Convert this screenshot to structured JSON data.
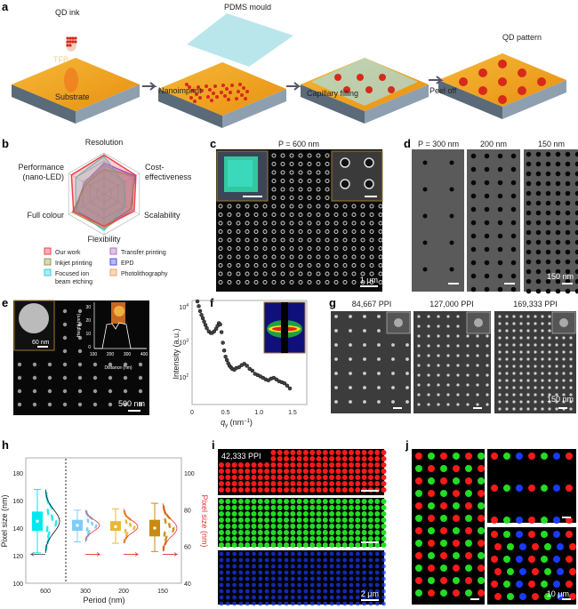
{
  "panels": {
    "a": "a",
    "b": "b",
    "c": "c",
    "d": "d",
    "e": "e",
    "f": "f",
    "g": "g",
    "h": "h",
    "i": "i",
    "j": "j"
  },
  "a": {
    "labels": {
      "qd_ink": "QD ink",
      "tfb": "TFB",
      "substrate": "Substrate",
      "pdms": "PDMS mould",
      "qd_pattern": "QD pattern"
    },
    "steps": [
      "Nanoimprint",
      "Capillary filling",
      "Peel off"
    ],
    "colors": {
      "slab": "#f2a81e",
      "qd": "#d62a1a",
      "mould": "#a8e0e6"
    }
  },
  "b": {
    "axes": [
      "Resolution",
      "Cost-",
      "effectiveness",
      "Scalability",
      "Flexibility",
      "Full colour",
      "Performance",
      "(nano-LED)"
    ],
    "legend": [
      {
        "label": "Our work",
        "color": "#f0404a"
      },
      {
        "label": "Transfer printing",
        "color": "#b070c0"
      },
      {
        "label": "Inkjet printing",
        "color": "#9a9a50"
      },
      {
        "label": "EPD",
        "color": "#5050e0"
      },
      {
        "label": "Focused ion",
        "label2": "beam etching",
        "color": "#30d0d8"
      },
      {
        "label": "Photolithography",
        "color": "#f0a060"
      }
    ]
  },
  "c": {
    "title": "P = 600 nm",
    "scale": "1 μm"
  },
  "d": {
    "titles": [
      "P = 300 nm",
      "200 nm",
      "150 nm"
    ],
    "scale": "150 nm"
  },
  "e": {
    "inset_scale": "60 nm",
    "scale": "500 nm",
    "afm": {
      "ylabel": "Height (nm)",
      "xlabel": "Distance (nm)",
      "yticks": [
        "0",
        "10",
        "20",
        "30"
      ],
      "xticks": [
        "100",
        "200",
        "300",
        "400"
      ]
    }
  },
  "g": {
    "titles": [
      "84,667 PPI",
      "127,000 PPI",
      "169,333 PPI"
    ],
    "scale": "150 nm"
  },
  "i": {
    "badge": "42,333 PPI",
    "scale": "2 μm"
  },
  "j": {
    "scale": "10 μm"
  },
  "chart_data": [
    {
      "panel": "b",
      "type": "radar",
      "axes": [
        "Resolution",
        "Cost-effectiveness",
        "Scalability",
        "Flexibility",
        "Full colour",
        "Performance (nano-LED)"
      ],
      "series": [
        {
          "name": "Our work",
          "values": [
            0.95,
            0.9,
            0.85,
            0.8,
            0.86,
            0.92
          ]
        },
        {
          "name": "Inkjet printing",
          "values": [
            0.6,
            0.85,
            0.8,
            0.85,
            0.9,
            0.5
          ]
        },
        {
          "name": "Focused ion beam etching",
          "values": [
            0.92,
            0.55,
            0.6,
            0.9,
            0.8,
            0.8
          ]
        },
        {
          "name": "Transfer printing",
          "values": [
            0.75,
            0.85,
            0.8,
            0.78,
            0.85,
            0.55
          ]
        },
        {
          "name": "EPD",
          "values": [
            0.75,
            0.88,
            0.75,
            0.8,
            0.8,
            0.55
          ]
        },
        {
          "name": "Photolithography",
          "values": [
            0.7,
            0.8,
            0.8,
            0.86,
            0.9,
            0.5
          ]
        }
      ]
    },
    {
      "panel": "f",
      "type": "scatter",
      "xlabel": "q",
      "xlabel_sub": "y",
      "xlabel_unit": " (nm",
      "xlabel_sup": "−1",
      "xlabel_end": ")",
      "ylabel": "Intensity (a.u.)",
      "yscale": "log",
      "xlim": [
        0,
        1.6
      ],
      "ylim": [
        30,
        20000
      ],
      "xticks": [
        "0",
        "0.5",
        "1.0",
        "1.5"
      ],
      "yticks": [
        "10",
        "10",
        "10"
      ],
      "ytick_exp": [
        "2",
        "3",
        "4"
      ],
      "x": [
        0.08,
        0.1,
        0.12,
        0.14,
        0.16,
        0.18,
        0.2,
        0.22,
        0.25,
        0.28,
        0.3,
        0.33,
        0.36,
        0.38,
        0.4,
        0.42,
        0.44,
        0.46,
        0.48,
        0.5,
        0.52,
        0.54,
        0.56,
        0.58,
        0.6,
        0.63,
        0.66,
        0.7,
        0.74,
        0.78,
        0.82,
        0.86,
        0.9,
        0.94,
        0.98,
        1.02,
        1.06,
        1.1,
        1.14,
        1.18,
        1.22,
        1.26,
        1.3,
        1.34,
        1.38,
        1.42,
        1.46
      ],
      "y": [
        15000,
        11000,
        8000,
        6200,
        5000,
        4000,
        3200,
        2600,
        2100,
        1900,
        1900,
        2100,
        2500,
        3000,
        3600,
        3300,
        2000,
        1000,
        600,
        400,
        320,
        260,
        220,
        200,
        180,
        170,
        190,
        200,
        230,
        250,
        220,
        180,
        160,
        130,
        120,
        110,
        100,
        90,
        85,
        95,
        100,
        90,
        80,
        75,
        70,
        60,
        50
      ]
    },
    {
      "panel": "h",
      "type": "box",
      "xlabel": "Period (nm)",
      "ylabel": "Pixel size (nm)",
      "ylabel_right": "Pixel size (nm)",
      "categories": [
        "600",
        "300",
        "200",
        "150"
      ],
      "ylim": [
        100,
        190
      ],
      "ylim_right": [
        40,
        110
      ],
      "yticks": [
        "100",
        "120",
        "140",
        "160",
        "180"
      ],
      "yticks_right": [
        "40",
        "60",
        "80",
        "100"
      ],
      "series": [
        {
          "category": "600",
          "axis": "left",
          "median": 145,
          "q1": 138,
          "q3": 152,
          "min": 122,
          "max": 168,
          "color": "#00e8f0"
        },
        {
          "category": "300",
          "axis": "right",
          "median": 142,
          "q1": 138,
          "q3": 146,
          "min": 130,
          "max": 153,
          "color": "#80ccf8"
        },
        {
          "category": "200",
          "axis": "right",
          "median": 141,
          "q1": 138,
          "q3": 145,
          "min": 129,
          "max": 154,
          "color": "#e8b838"
        },
        {
          "category": "150",
          "axis": "right",
          "median": 140,
          "q1": 134,
          "q3": 146,
          "min": 123,
          "max": 158,
          "color": "#c88a10"
        }
      ]
    }
  ]
}
